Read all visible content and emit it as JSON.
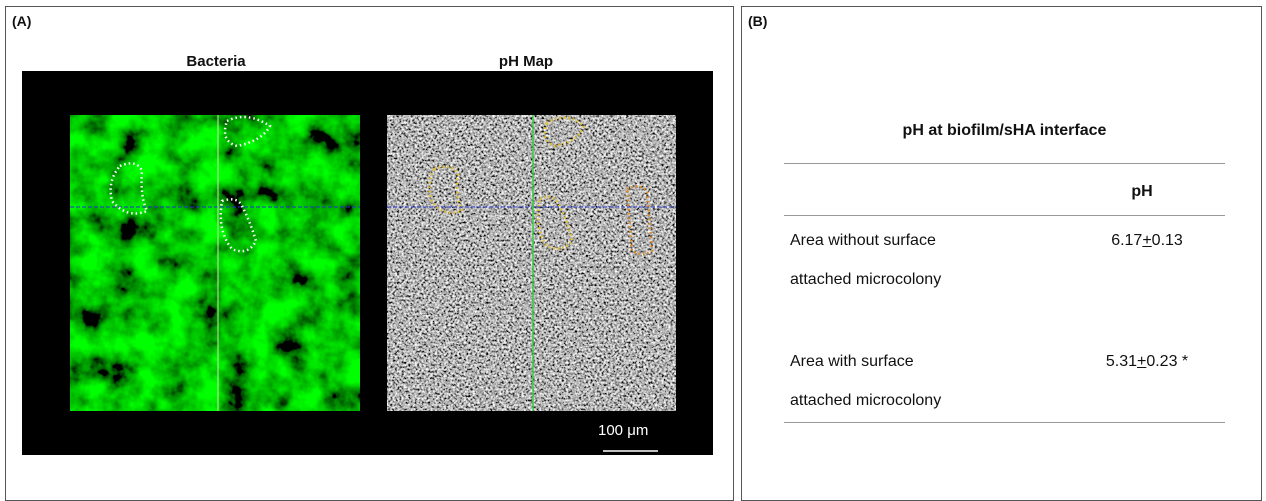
{
  "panel_a": {
    "label": "(A)",
    "image_titles": [
      "Bacteria",
      "pH Map"
    ],
    "scale_bar": "100 μm"
  },
  "panel_b": {
    "label": "(B)",
    "table": {
      "title": "pH at biofilm/sHA interface",
      "header": "pH",
      "rows": [
        {
          "label_lines": [
            "Area without surface",
            "attached microcolony"
          ],
          "mean": "6.17",
          "sign": "+",
          "sd": "0.13"
        },
        {
          "label_lines": [
            "Area with surface",
            "attached microcolony"
          ],
          "mean": "5.31",
          "sign": "+",
          "sd": "0.23",
          "note": "*"
        }
      ]
    }
  }
}
